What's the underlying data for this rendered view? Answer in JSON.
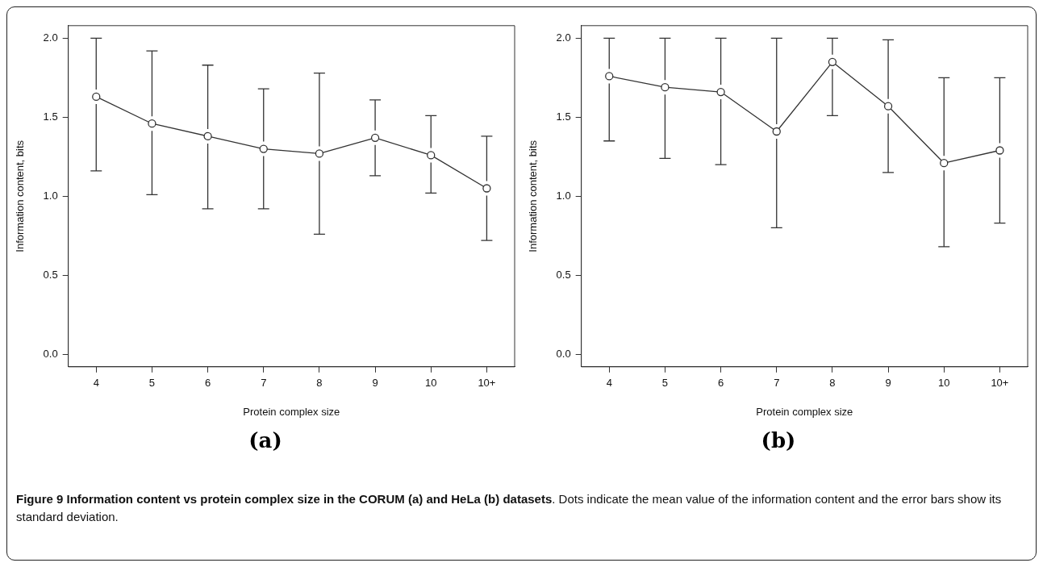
{
  "chart_data": [
    {
      "type": "line",
      "title": "(a)",
      "xlabel": "Protein complex size",
      "ylabel": "Information content, bits",
      "categories": [
        "4",
        "5",
        "6",
        "7",
        "8",
        "9",
        "10",
        "10+"
      ],
      "series": [
        {
          "color": "#333333",
          "values": [
            1.63,
            1.46,
            1.38,
            1.3,
            1.27,
            1.37,
            1.26,
            1.05
          ],
          "errors": [
            [
              1.16,
              2.0
            ],
            [
              1.01,
              1.92
            ],
            [
              0.92,
              1.83
            ],
            [
              0.92,
              1.68
            ],
            [
              0.76,
              1.78
            ],
            [
              1.13,
              1.61
            ],
            [
              1.02,
              1.51
            ],
            [
              0.72,
              1.38
            ]
          ]
        }
      ],
      "ylim": [
        -0.08,
        2.08
      ],
      "yticks": [
        {
          "value": 0,
          "label": "0.0"
        },
        {
          "value": 0.5,
          "label": "0.5"
        },
        {
          "value": 1,
          "label": "1.0"
        },
        {
          "value": 1.5,
          "label": "1.5"
        },
        {
          "value": 2,
          "label": "2.0"
        }
      ],
      "grid": false,
      "legend": false,
      "marker": "circle",
      "line_style": "solid",
      "annotations": [
        "Figure 9 Information content vs protein complex size in the CORUM (a) and HeLa (b) datasets",
        ". Dots indicate the mean value of the information content and the error bars show its standard deviation."
      ]
    },
    {
      "type": "line",
      "title": "(b)",
      "xlabel": "Protein complex size",
      "ylabel": "Information content, bits",
      "categories": [
        "4",
        "5",
        "6",
        "7",
        "8",
        "9",
        "10",
        "10+"
      ],
      "series": [
        {
          "color": "#333333",
          "values": [
            1.76,
            1.69,
            1.66,
            1.41,
            1.85,
            1.57,
            1.21,
            1.29
          ],
          "errors": [
            [
              1.35,
              2.0
            ],
            [
              1.24,
              2.0
            ],
            [
              1.2,
              2.0
            ],
            [
              0.8,
              2.0
            ],
            [
              1.51,
              2.0
            ],
            [
              1.15,
              1.99
            ],
            [
              0.68,
              1.75
            ],
            [
              0.83,
              1.75
            ]
          ]
        }
      ],
      "ylim": [
        -0.08,
        2.08
      ],
      "yticks": [
        {
          "value": 0,
          "label": "0.0"
        },
        {
          "value": 0.5,
          "label": "0.5"
        },
        {
          "value": 1,
          "label": "1.0"
        },
        {
          "value": 1.5,
          "label": "1.5"
        },
        {
          "value": 2,
          "label": "2.0"
        }
      ],
      "grid": false,
      "legend": false,
      "marker": "circle",
      "line_style": "solid"
    }
  ]
}
